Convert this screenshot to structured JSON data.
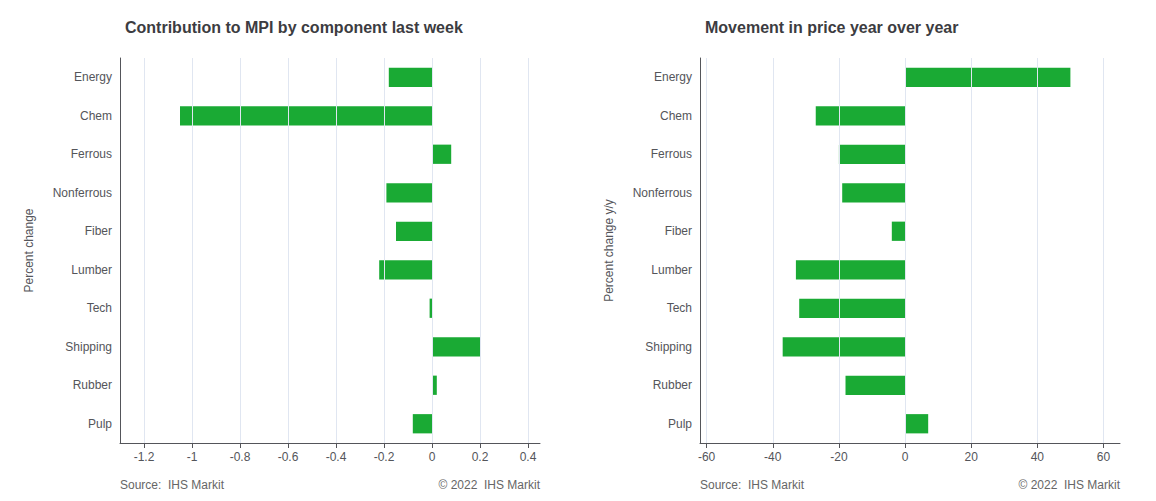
{
  "chart_data": [
    {
      "type": "bar",
      "orientation": "horizontal",
      "title": "Contribution to MPI by component last week",
      "ylabel": "Percent change",
      "categories": [
        "Energy",
        "Chem",
        "Ferrous",
        "Nonferrous",
        "Fiber",
        "Lumber",
        "Tech",
        "Shipping",
        "Rubber",
        "Pulp"
      ],
      "values": [
        -0.18,
        -1.05,
        0.08,
        -0.19,
        -0.15,
        -0.22,
        -0.01,
        0.2,
        0.02,
        -0.08
      ],
      "color": "#1aaa34",
      "xlim": [
        -1.3,
        0.45
      ],
      "xticks": [
        -1.2,
        -1,
        -0.8,
        -0.6,
        -0.4,
        -0.2,
        0,
        0.2,
        0.4
      ],
      "grid": true,
      "annotations": [
        "Source:  IHS Markit",
        "© 2022  IHS Markit"
      ]
    },
    {
      "type": "bar",
      "orientation": "horizontal",
      "title": "Movement in price year over year",
      "ylabel": "Percent change y/y",
      "categories": [
        "Energy",
        "Chem",
        "Ferrous",
        "Nonferrous",
        "Fiber",
        "Lumber",
        "Tech",
        "Shipping",
        "Rubber",
        "Pulp"
      ],
      "values": [
        50,
        -27,
        -20,
        -19,
        -4,
        -33,
        -32,
        -37,
        -18,
        7
      ],
      "color": "#1aaa34",
      "xlim": [
        -62,
        65
      ],
      "xticks": [
        -60,
        -40,
        -20,
        0,
        20,
        40,
        60
      ],
      "grid": true,
      "annotations": [
        "Source:  IHS Markit",
        "© 2022  IHS Markit"
      ]
    }
  ]
}
